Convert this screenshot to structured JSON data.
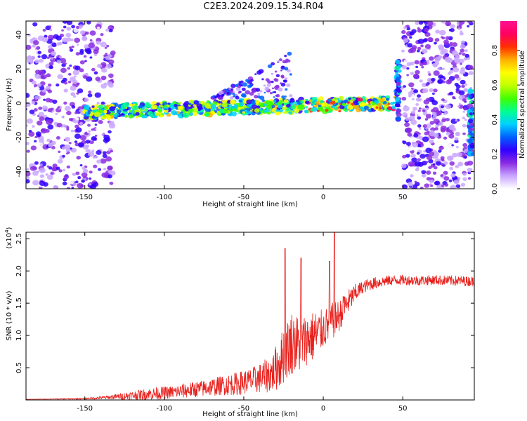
{
  "title": "C2E3.2024.209.15.34.R04",
  "colors": {
    "snr_line": "#e8201c",
    "axis": "#000000"
  },
  "chart_data": [
    {
      "type": "heatmap",
      "xlabel": "Height of straight line (km)",
      "ylabel": "Frequency (Hz)",
      "xlim": [
        -187,
        95
      ],
      "ylim": [
        -50,
        48
      ],
      "xticks": [
        -150,
        -100,
        -50,
        0,
        50
      ],
      "yticks": [
        -40,
        -20,
        0,
        20,
        40
      ],
      "colorbar": {
        "label": "Normalized spectral amplitude",
        "range": [
          0,
          0.97
        ],
        "ticks": [
          "0.0",
          "0.2",
          "0.4",
          "0.6",
          "0.8"
        ],
        "tick_values": [
          0.0,
          0.2,
          0.4,
          0.6,
          0.8
        ],
        "colormap": [
          "#ffffff",
          "#c9a6ff",
          "#8a2be2",
          "#3000ff",
          "#0060ff",
          "#00d0ff",
          "#00ff90",
          "#40ff00",
          "#c0ff00",
          "#ffff00",
          "#ffb000",
          "#ff3000",
          "#ff0060",
          "#ff1090"
        ]
      },
      "features": [
        {
          "name": "noise region",
          "x_range": [
            -187,
            -132
          ],
          "amplitude": 0.15
        },
        {
          "name": "signal trace",
          "x_start": -150,
          "x_end": 45,
          "y_start": -5,
          "y_end": 0,
          "amplitude": 0.6
        },
        {
          "name": "upper scatter",
          "x_range": [
            -70,
            -20
          ],
          "y_range": [
            3,
            30
          ],
          "amplitude": 0.25
        },
        {
          "name": "vertical spike",
          "x": 47,
          "y_range": [
            -10,
            25
          ],
          "amplitude": 0.3
        },
        {
          "name": "noise region",
          "x_range": [
            50,
            93
          ],
          "amplitude": 0.15
        },
        {
          "name": "vertical spike",
          "x": 93,
          "y_range": [
            -30,
            8
          ],
          "amplitude": 0.3
        }
      ]
    },
    {
      "type": "line",
      "xlabel": "Height of straight line (km)",
      "ylabel": "SNR (10 * v/v)",
      "y_scale_label": "(x10",
      "y_scale_exponent": "4",
      "y_scale_suffix": ")",
      "xlim": [
        -187,
        95
      ],
      "ylim": [
        0,
        2.6
      ],
      "xticks": [
        -150,
        -100,
        -50,
        0,
        50
      ],
      "yticks": [
        "0.5",
        "1.0",
        "1.5",
        "2.0",
        "2.5"
      ],
      "ytick_values": [
        0.5,
        1.0,
        1.5,
        2.0,
        2.5
      ],
      "series": [
        {
          "x": [
            -187,
            -150,
            -135,
            -125,
            -115,
            -105,
            -95,
            -85,
            -75,
            -65,
            -55,
            -45,
            -38,
            -32,
            -28,
            -25,
            -20,
            -15,
            -10,
            -5,
            0,
            5,
            10,
            15,
            20,
            25,
            30,
            40,
            50,
            60,
            70,
            80,
            95
          ],
          "y": [
            0.01,
            0.02,
            0.04,
            0.06,
            0.08,
            0.1,
            0.12,
            0.15,
            0.18,
            0.22,
            0.25,
            0.3,
            0.35,
            0.42,
            0.55,
            0.7,
            0.9,
            0.85,
            0.95,
            1.0,
            1.1,
            1.2,
            1.3,
            1.5,
            1.65,
            1.75,
            1.8,
            1.85,
            1.86,
            1.85,
            1.86,
            1.85,
            1.84
          ],
          "spread": [
            0.0,
            0.01,
            0.03,
            0.06,
            0.08,
            0.1,
            0.1,
            0.12,
            0.13,
            0.15,
            0.18,
            0.2,
            0.25,
            0.3,
            0.4,
            0.45,
            0.5,
            0.45,
            0.4,
            0.4,
            0.3,
            0.3,
            0.25,
            0.2,
            0.15,
            0.1,
            0.1,
            0.08,
            0.08,
            0.08,
            0.08,
            0.08,
            0.08
          ]
        }
      ],
      "peaks": [
        {
          "x": -24,
          "y": 2.35
        },
        {
          "x": -14,
          "y": 2.2
        },
        {
          "x": 7,
          "y": 2.6
        },
        {
          "x": 4,
          "y": 2.15
        },
        {
          "x": 13,
          "y": 1.6
        }
      ]
    }
  ]
}
